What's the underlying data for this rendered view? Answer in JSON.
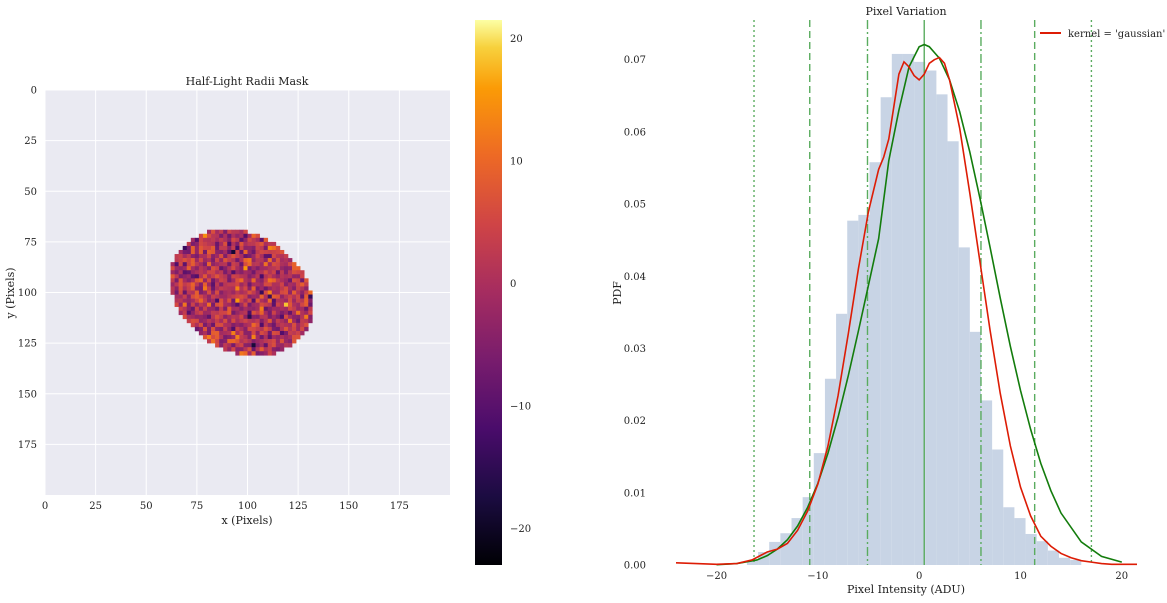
{
  "chart_data": [
    {
      "type": "heatmap",
      "title": "Half-Light Radii Mask",
      "xlabel": "x (Pixels)",
      "ylabel": "y (Pixels)",
      "xlim": [
        0,
        200
      ],
      "ylim": [
        200,
        0
      ],
      "xticks": [
        "0",
        "25",
        "50",
        "75",
        "100",
        "125",
        "150",
        "175"
      ],
      "yticks": [
        "0",
        "25",
        "50",
        "75",
        "100",
        "125",
        "150",
        "175"
      ],
      "mask": {
        "center": [
          97,
          100
        ],
        "semi_axes": [
          37,
          29
        ],
        "angle_deg": 30
      },
      "colormap": "inferno",
      "colorbar": {
        "range": [
          -23,
          21.5
        ],
        "ticks": [
          "20",
          "10",
          "0",
          "−10",
          "−20"
        ]
      },
      "grid": true
    },
    {
      "type": "bar",
      "title": "Pixel Variation",
      "xlabel": "Pixel Intensity (ADU)",
      "ylabel": "PDF",
      "xlim": [
        -24,
        21.5
      ],
      "ylim": [
        0,
        0.0755
      ],
      "xticks": [
        "−20",
        "−10",
        "0",
        "10",
        "20"
      ],
      "yticks": [
        "0.00",
        "0.01",
        "0.02",
        "0.03",
        "0.04",
        "0.05",
        "0.06",
        "0.07"
      ],
      "histogram": {
        "edges": [
          -17.0,
          -15.9,
          -14.8,
          -13.7,
          -12.6,
          -11.5,
          -10.4,
          -9.3,
          -8.2,
          -7.1,
          -6.0,
          -4.9,
          -3.8,
          -2.7,
          -1.6,
          -0.5,
          0.6,
          1.7,
          2.8,
          3.9,
          5.0,
          6.1,
          7.2,
          8.3,
          9.4,
          10.5,
          11.6,
          12.7,
          13.8,
          14.9,
          16.0
        ],
        "values": [
          0.0006,
          0.0018,
          0.0032,
          0.0044,
          0.0065,
          0.0094,
          0.0155,
          0.0258,
          0.0348,
          0.0477,
          0.0485,
          0.0558,
          0.0648,
          0.0708,
          0.0708,
          0.0697,
          0.0685,
          0.0652,
          0.0587,
          0.044,
          0.0323,
          0.0228,
          0.016,
          0.008,
          0.0065,
          0.0043,
          0.0033,
          0.002,
          0.001,
          0.0007
        ]
      },
      "series": [
        {
          "name": "kernel = 'gaussian'",
          "x": [
            -24,
            -22,
            -20,
            -18,
            -16.5,
            -15,
            -14,
            -13,
            -12,
            -11,
            -10,
            -9,
            -8,
            -7,
            -6,
            -5,
            -4,
            -3.5,
            -3,
            -2.5,
            -2,
            -1.5,
            -1,
            -0.5,
            0,
            0.5,
            1,
            1.5,
            2,
            2.5,
            3,
            4,
            5,
            6,
            7,
            8,
            9,
            10,
            11,
            12,
            13,
            14,
            15,
            16,
            17,
            18,
            19,
            20,
            21.5
          ],
          "y": [
            0.0003,
            0.0002,
            0.0001,
            0.0002,
            0.0007,
            0.0018,
            0.0022,
            0.003,
            0.0048,
            0.0075,
            0.0112,
            0.0165,
            0.0235,
            0.032,
            0.041,
            0.049,
            0.0548,
            0.0565,
            0.059,
            0.0635,
            0.068,
            0.0697,
            0.069,
            0.0678,
            0.0672,
            0.068,
            0.0695,
            0.07,
            0.0703,
            0.0695,
            0.0672,
            0.0605,
            0.0515,
            0.042,
            0.0325,
            0.0238,
            0.0165,
            0.0108,
            0.0068,
            0.004,
            0.0026,
            0.0016,
            0.001,
            0.0006,
            0.0004,
            0.0002,
            0.0001,
            0.0001,
            0.0001
          ]
        },
        {
          "x": [
            -20,
            -18,
            -16,
            -15,
            -14,
            -13,
            -12,
            -11,
            -10,
            -9,
            -8,
            -7,
            -6,
            -5,
            -4,
            -3,
            -2,
            -1,
            0,
            0.5,
            1,
            2,
            3,
            4,
            5,
            6,
            7,
            8,
            9,
            10,
            11,
            12,
            13,
            14,
            16,
            18,
            20
          ],
          "y": [
            5e-05,
            0.0002,
            0.0007,
            0.0013,
            0.0022,
            0.0035,
            0.0054,
            0.008,
            0.0113,
            0.0155,
            0.0205,
            0.0262,
            0.0324,
            0.0388,
            0.0452,
            0.056,
            0.063,
            0.069,
            0.0718,
            0.0721,
            0.0718,
            0.0702,
            0.0672,
            0.0628,
            0.0572,
            0.0508,
            0.044,
            0.037,
            0.0303,
            0.0242,
            0.0188,
            0.0141,
            0.0103,
            0.0072,
            0.0032,
            0.0012,
            0.0004
          ]
        }
      ],
      "vlines": {
        "solid": [
          0.5
        ],
        "dashdot": [
          -5.1,
          6.1
        ],
        "dashed": [
          -10.8,
          11.4
        ],
        "dotted": [
          -16.3,
          17.0
        ]
      },
      "legend": "top-right",
      "colors": {
        "hist": "#c8d4e5",
        "kde": "#dd1c05",
        "fit": "#137c0c",
        "vlines": "#5aac5f"
      }
    }
  ]
}
